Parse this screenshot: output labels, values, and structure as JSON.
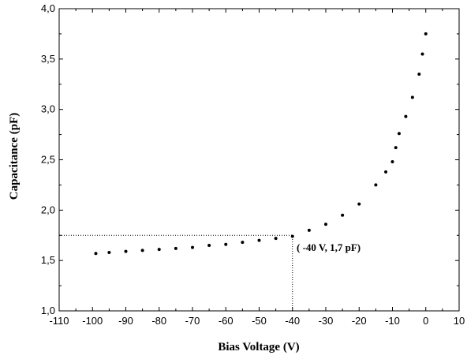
{
  "chart_data": {
    "type": "scatter",
    "title": "",
    "xlabel": "Bias Voltage (V)",
    "ylabel": "Capacitance (pF)",
    "xlim": [
      -110,
      10
    ],
    "ylim": [
      1.0,
      4.0
    ],
    "x_ticks": [
      -110,
      -100,
      -90,
      -80,
      -70,
      -60,
      -50,
      -40,
      -30,
      -20,
      -10,
      0,
      10
    ],
    "x_tick_labels": [
      "-110",
      "-100",
      "-90",
      "-80",
      "-70",
      "-60",
      "-50",
      "-40",
      "-30",
      "-20",
      "-10",
      "0",
      "10"
    ],
    "y_ticks": [
      1.0,
      1.5,
      2.0,
      2.5,
      3.0,
      3.5,
      4.0
    ],
    "y_tick_labels": [
      "1,0",
      "1,5",
      "2,0",
      "2,5",
      "3,0",
      "3,5",
      "4,0"
    ],
    "grid": false,
    "marker_color": "#000000",
    "series": [
      {
        "x": [
          -99,
          -95,
          -90,
          -85,
          -80,
          -75,
          -70,
          -65,
          -60,
          -55,
          -50,
          -45,
          -40,
          -35,
          -30,
          -25,
          -20,
          -15,
          -12,
          -10,
          -9,
          -8,
          -6,
          -4,
          -2,
          -1,
          0
        ],
        "y": [
          1.57,
          1.58,
          1.59,
          1.6,
          1.61,
          1.62,
          1.63,
          1.65,
          1.66,
          1.68,
          1.7,
          1.72,
          1.74,
          1.8,
          1.86,
          1.95,
          2.06,
          2.25,
          2.38,
          2.48,
          2.62,
          2.76,
          2.93,
          3.12,
          3.35,
          3.55,
          3.75
        ]
      }
    ],
    "reference_lines": [
      {
        "orientation": "horizontal",
        "value": 1.75,
        "from": -110,
        "to": -40
      },
      {
        "orientation": "vertical",
        "value": -40,
        "from": 1.0,
        "to": 1.75
      }
    ],
    "annotation": {
      "text": "( -40 V, 1,7 pF)",
      "x": -40,
      "y": 1.7
    }
  }
}
